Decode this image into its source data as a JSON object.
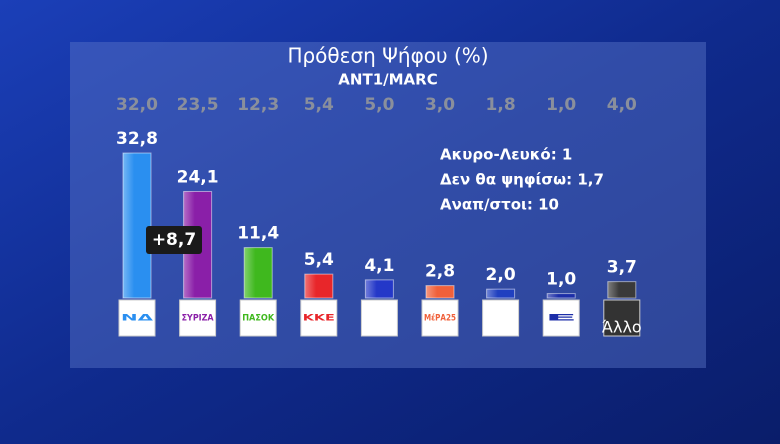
{
  "chart_data": {
    "type": "bar",
    "title": "Πρόθεση Ψήφου (%)",
    "subtitle": "ANT1/MARC",
    "categories": [
      "ΝΔ",
      "ΣΥΡΙΖΑ",
      "ΠΑΣΟΚ",
      "ΚΚΕ",
      null,
      "ΜέΡΑ25",
      null,
      "Ε",
      "Άλλο"
    ],
    "series": [
      {
        "values": [
          32.8,
          24.1,
          11.4,
          5.4,
          4.1,
          2.8,
          2.0,
          1.0,
          3.7
        ],
        "value_labels": [
          "32,8",
          "24,1",
          "11,4",
          "5,4",
          "4,1",
          "2,8",
          "2,0",
          "1,0",
          "3,7"
        ],
        "colors": [
          "#2a8ff0",
          "#8a1fa8",
          "#3fb81e",
          "#e8262a",
          "#2438c8",
          "#f0603a",
          "#2040c0",
          "#1c2ea8",
          "#3a3a3a"
        ]
      },
      {
        "values": [
          32.0,
          23.5,
          12.3,
          5.4,
          5.0,
          3.0,
          1.8,
          1.0,
          4.0
        ],
        "value_labels": [
          "32,0",
          "23,5",
          "12,3",
          "5,4",
          "5,0",
          "3,0",
          "1,8",
          "1,0",
          "4,0"
        ],
        "color": "#8a8f9c"
      }
    ],
    "annotation": "+8,7",
    "notes": [
      "Ακυρο-Λευκό: 1",
      "Δεν θα ψηφίσω: 1,7",
      "Αναπ/στοι: 10"
    ]
  }
}
